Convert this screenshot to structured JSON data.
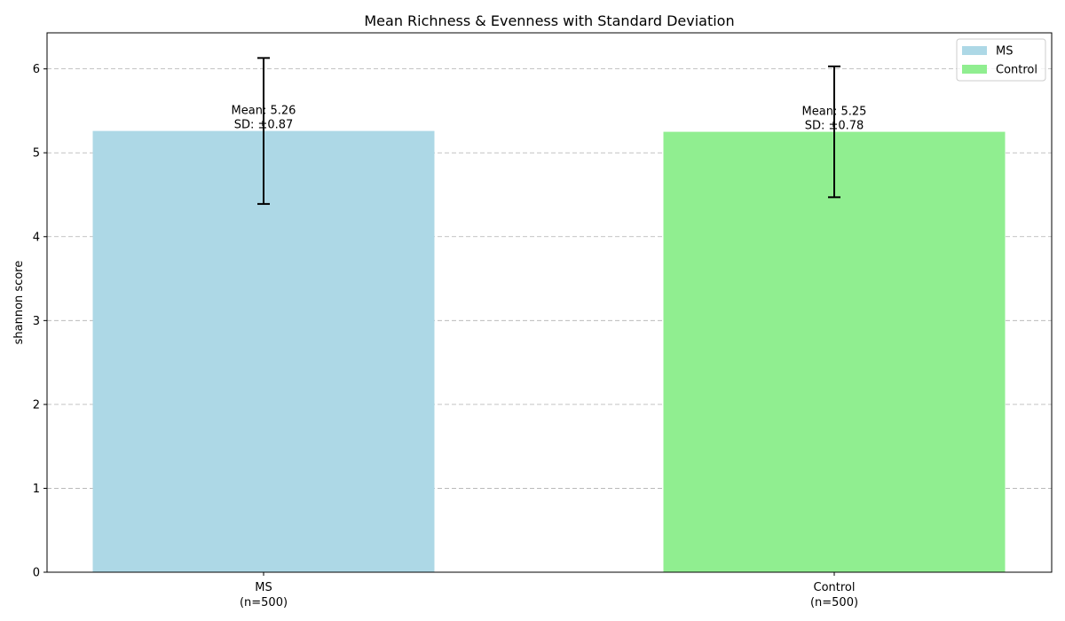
{
  "chart_data": {
    "type": "bar",
    "title": "Mean Richness & Evenness with Standard Deviation",
    "xlabel": "",
    "ylabel": "shannon score",
    "categories": [
      "MS",
      "Control"
    ],
    "category_sublabels": [
      "(n=500)",
      "(n=500)"
    ],
    "values": [
      5.26,
      5.25
    ],
    "errors": [
      0.87,
      0.78
    ],
    "bar_labels": [
      {
        "mean": "Mean: 5.26",
        "sd": "SD: ±0.87"
      },
      {
        "mean": "Mean: 5.25",
        "sd": "SD: ±0.78"
      }
    ],
    "colors": [
      "#add8e6",
      "#90ee90"
    ],
    "legend": {
      "placement": "top-right",
      "entries": [
        {
          "label": "MS",
          "color": "#add8e6"
        },
        {
          "label": "Control",
          "color": "#90ee90"
        }
      ]
    },
    "ylim": [
      0,
      6.43
    ],
    "yticks": [
      0,
      1,
      2,
      3,
      4,
      5,
      6
    ],
    "grid": "y-dashed"
  }
}
